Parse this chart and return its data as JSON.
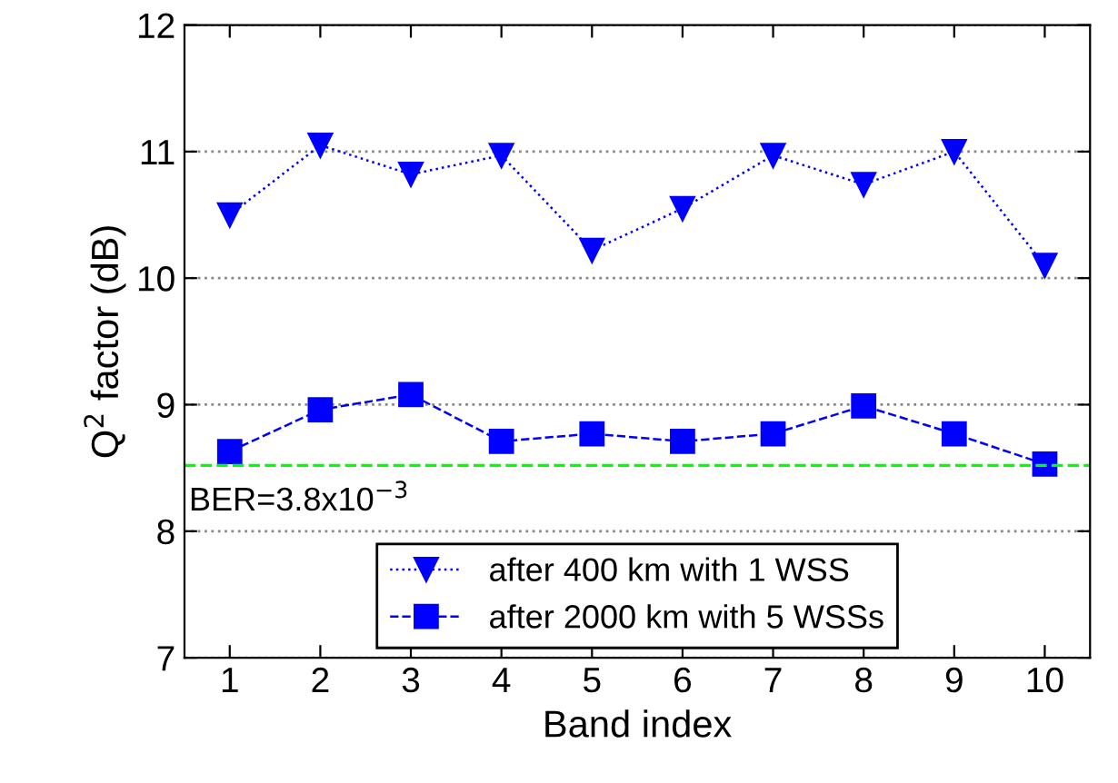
{
  "chart_data": {
    "type": "line",
    "xlabel": "Band index",
    "ylabel": "Q$^{2}$ factor (dB)",
    "x": [
      1,
      2,
      3,
      4,
      5,
      6,
      7,
      8,
      9,
      10
    ],
    "xlim": [
      0.5,
      10.5
    ],
    "xticks": [
      1,
      2,
      3,
      4,
      5,
      6,
      7,
      8,
      9,
      10
    ],
    "ylim": [
      7,
      12
    ],
    "yticks": [
      7,
      8,
      9,
      10,
      11,
      12
    ],
    "grid": "y",
    "legend": "bottom",
    "series": [
      {
        "name": "after 400 km with 1 WSS",
        "color": "#0000ff",
        "marker": "triangle",
        "line_style": "dotted",
        "values": [
          10.5,
          11.05,
          10.82,
          10.97,
          10.22,
          10.55,
          10.97,
          10.74,
          11.0,
          10.1
        ]
      },
      {
        "name": "after 2000 km with 5 WSSs",
        "color": "#0000ff",
        "marker": "square",
        "line_style": "dashed",
        "values": [
          8.63,
          8.96,
          9.08,
          8.71,
          8.77,
          8.71,
          8.77,
          8.99,
          8.77,
          8.53
        ]
      }
    ],
    "ref_lines": [
      {
        "axis": "y",
        "value": 8.52,
        "color": "#00ff00",
        "line_style": "dashed"
      }
    ],
    "annotations": [
      "BER=3.8x10$^{−3}$"
    ]
  }
}
